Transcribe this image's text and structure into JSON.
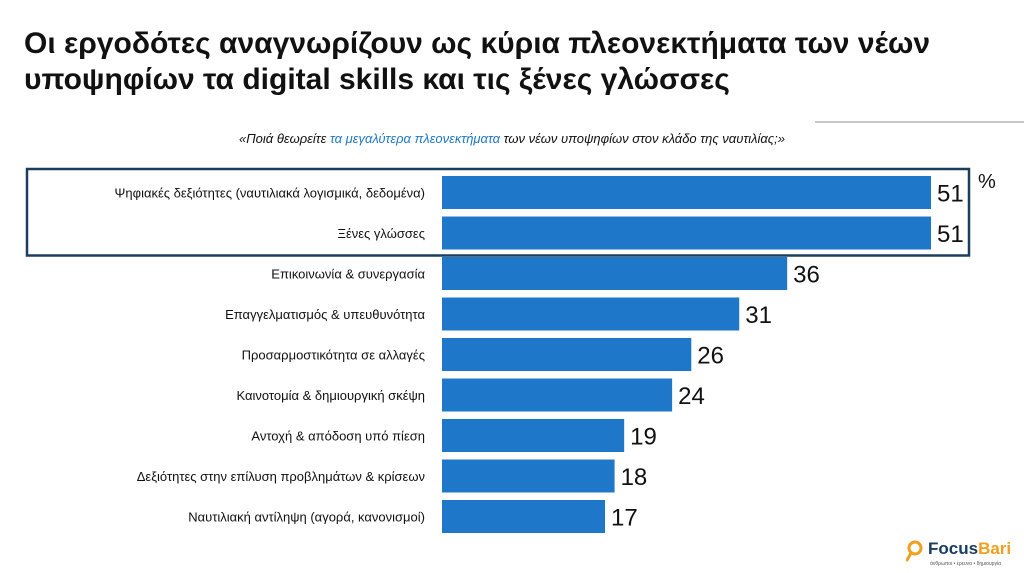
{
  "header": {
    "title": "Οι εργοδότες αναγνωρίζουν ως κύρια πλεονεκτήματα των νέων υποψηφίων τα digital skills και τις ξένες γλώσσες",
    "question_pre": "«Ποιά θεωρείτε ",
    "question_highlight": "τα μεγαλύτερα πλεονεκτήματα",
    "question_post": " των νέων υποψηφίων στον κλάδο της ναυτιλίας;»"
  },
  "chart_data": {
    "type": "bar",
    "orientation": "horizontal",
    "unit_label": "%",
    "categories": [
      "Ψηφιακές δεξιότητες (ναυτιλιακά λογισμικά, δεδομένα)",
      "Ξένες γλώσσες",
      "Επικοινωνία & συνεργασία",
      "Επαγγελματισμός & υπευθυνότητα",
      "Προσαρμοστικότητα σε αλλαγές",
      "Καινοτομία & δημιουργική σκέψη",
      "Αντοχή & απόδοση υπό πίεση",
      "Δεξιότητες στην επίλυση προβλημάτων & κρίσεων",
      "Ναυτιλιακή αντίληψη (αγορά, κανονισμοί)"
    ],
    "values": [
      51,
      51,
      36,
      31,
      26,
      24,
      19,
      18,
      17
    ],
    "highlighted_categories": [
      0,
      1
    ],
    "xlim": [
      0,
      51
    ],
    "grid": false,
    "bar_color": "#1f77c9",
    "highlight_border_color": "#1a3e60"
  },
  "logo": {
    "name_main": "Focus",
    "name_accent": "Bari",
    "tagline": "άνθρωποι • έρευνα • δημιουργία"
  }
}
